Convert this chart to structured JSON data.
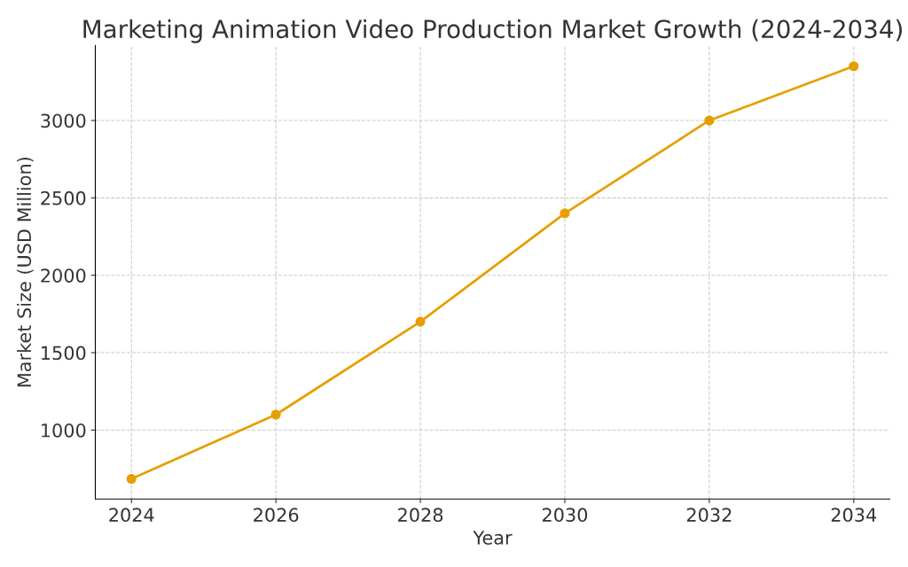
{
  "chart_data": {
    "type": "line",
    "title": "Marketing Animation Video Production Market Growth (2024-2034)",
    "xlabel": "Year",
    "ylabel": "Market Size (USD Million)",
    "x": [
      2024,
      2026,
      2028,
      2030,
      2032,
      2034
    ],
    "series": [
      {
        "color": "#e69f00",
        "values": [
          685,
          1100,
          1700,
          2400,
          3000,
          3350
        ]
      }
    ],
    "xlim": [
      2023.5,
      2034.5
    ],
    "xticks": [
      2024,
      2026,
      2028,
      2030,
      2032,
      2034
    ],
    "ylim": [
      555,
      3485
    ],
    "yticks": [
      1000,
      1500,
      2000,
      2500,
      3000
    ],
    "grid": true,
    "marker": "circle",
    "line_style": "solid",
    "legend": false
  }
}
